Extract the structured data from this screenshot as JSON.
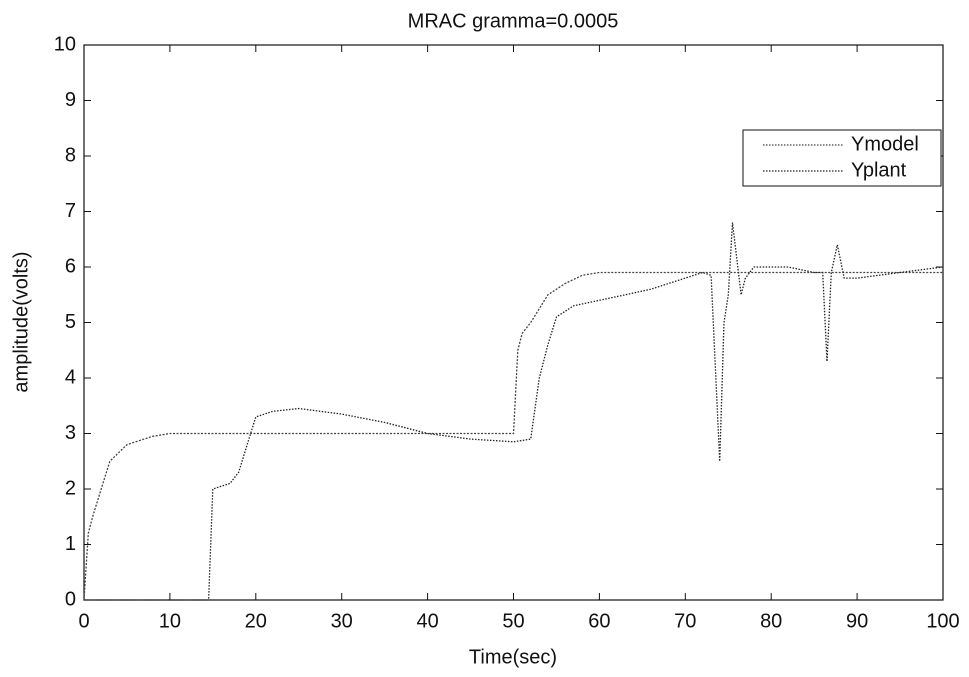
{
  "chart_data": {
    "type": "line",
    "title": "MRAC gramma=0.0005",
    "x_label": "Time(sec)",
    "y_label": "amplitude(volts)",
    "xlim": [
      0,
      100
    ],
    "xticks": [
      0,
      10,
      20,
      30,
      40,
      50,
      60,
      70,
      80,
      90,
      100
    ],
    "ylim": [
      0,
      10
    ],
    "yticks": [
      0,
      1,
      2,
      3,
      4,
      5,
      6,
      7,
      8,
      9,
      10
    ],
    "grid": false,
    "legend": "upper right",
    "series": [
      {
        "name": "Ymodel",
        "color": "#444444",
        "x": [
          0,
          0.5,
          1,
          2,
          3,
          5,
          8,
          10,
          50,
          50.5,
          51,
          52,
          54,
          56,
          58,
          60,
          100
        ],
        "values": [
          0,
          1.2,
          1.5,
          2.0,
          2.5,
          2.8,
          2.95,
          3.0,
          3.0,
          4.5,
          4.8,
          5.0,
          5.5,
          5.7,
          5.85,
          5.9,
          5.9
        ]
      },
      {
        "name": "Yplant",
        "color": "#222222",
        "x": [
          0,
          14.5,
          15,
          17,
          18,
          19,
          20,
          22,
          25,
          30,
          35,
          40,
          45,
          50,
          52,
          53,
          54,
          55,
          57,
          60,
          63,
          66,
          70,
          72,
          73,
          74,
          74.5,
          75,
          75.5,
          76.5,
          77,
          78,
          82,
          85,
          86,
          86.5,
          87,
          87.7,
          88.5,
          90,
          95,
          100
        ],
        "values": [
          0,
          0,
          2.0,
          2.1,
          2.3,
          2.8,
          3.3,
          3.4,
          3.45,
          3.35,
          3.2,
          3.0,
          2.9,
          2.85,
          2.9,
          4.0,
          4.6,
          5.1,
          5.3,
          5.4,
          5.5,
          5.6,
          5.8,
          5.9,
          5.85,
          2.5,
          5.0,
          5.5,
          6.8,
          5.5,
          5.8,
          6.0,
          6.0,
          5.9,
          5.9,
          4.3,
          5.9,
          6.4,
          5.8,
          5.8,
          5.9,
          6.0
        ]
      }
    ]
  }
}
